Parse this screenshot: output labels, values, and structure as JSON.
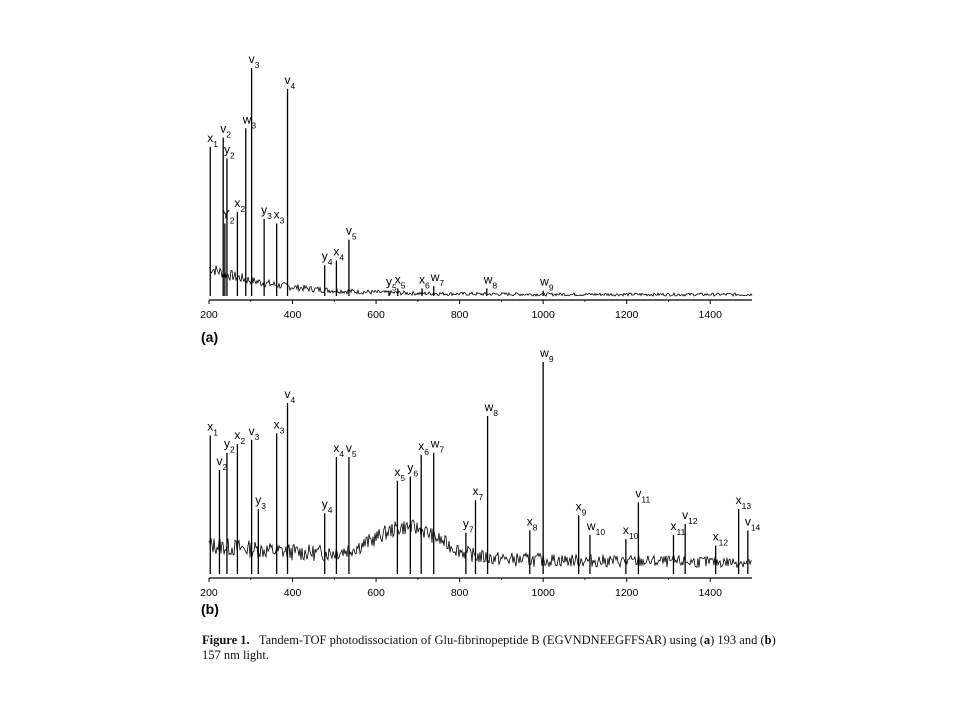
{
  "chart_data": [
    {
      "type": "line",
      "panel_label": "(a)",
      "x_tick_labels": [
        "200",
        "400",
        "600",
        "800",
        "1000",
        "1200",
        "1400"
      ],
      "xlim": [
        200,
        1500
      ],
      "ylim": [
        0,
        1
      ],
      "peaks": [
        {
          "x": 203,
          "y": 0.66,
          "label": "x",
          "sub": "1"
        },
        {
          "x": 234,
          "y": 0.7,
          "label": "v",
          "sub": "2"
        },
        {
          "x": 243,
          "y": 0.61,
          "label": "y",
          "sub": "2"
        },
        {
          "x": 238,
          "y": 0.33,
          "label": "Y",
          "sub": "2"
        },
        {
          "x": 268,
          "y": 0.38,
          "label": "x",
          "sub": "2"
        },
        {
          "x": 302,
          "y": 1.0,
          "label": "v",
          "sub": "3"
        },
        {
          "x": 288,
          "y": 0.74,
          "label": "w",
          "sub": "3"
        },
        {
          "x": 332,
          "y": 0.35,
          "label": "y",
          "sub": "3"
        },
        {
          "x": 362,
          "y": 0.33,
          "label": "x",
          "sub": "3"
        },
        {
          "x": 388,
          "y": 0.91,
          "label": "v",
          "sub": "4"
        },
        {
          "x": 477,
          "y": 0.15,
          "label": "y",
          "sub": "4"
        },
        {
          "x": 505,
          "y": 0.17,
          "label": "x",
          "sub": "4"
        },
        {
          "x": 535,
          "y": 0.26,
          "label": "v",
          "sub": "5"
        },
        {
          "x": 631,
          "y": 0.04,
          "label": "y",
          "sub": "5"
        },
        {
          "x": 652,
          "y": 0.05,
          "label": "x",
          "sub": "5"
        },
        {
          "x": 710,
          "y": 0.05,
          "label": "x",
          "sub": "6"
        },
        {
          "x": 738,
          "y": 0.06,
          "label": "w",
          "sub": "7"
        },
        {
          "x": 865,
          "y": 0.05,
          "label": "w",
          "sub": "8"
        },
        {
          "x": 1000,
          "y": 0.04,
          "label": "w",
          "sub": "9"
        }
      ]
    },
    {
      "type": "line",
      "panel_label": "(b)",
      "x_tick_labels": [
        "200",
        "400",
        "600",
        "800",
        "1000",
        "1200",
        "1400"
      ],
      "xlim": [
        200,
        1500
      ],
      "ylim": [
        0,
        1
      ],
      "peaks": [
        {
          "x": 203,
          "y": 0.66,
          "label": "x",
          "sub": "1"
        },
        {
          "x": 225,
          "y": 0.5,
          "label": "v",
          "sub": "2"
        },
        {
          "x": 243,
          "y": 0.58,
          "label": "y",
          "sub": "2"
        },
        {
          "x": 268,
          "y": 0.62,
          "label": "x",
          "sub": "2"
        },
        {
          "x": 302,
          "y": 0.64,
          "label": "v",
          "sub": "3"
        },
        {
          "x": 318,
          "y": 0.32,
          "label": "y",
          "sub": "3"
        },
        {
          "x": 362,
          "y": 0.67,
          "label": "x",
          "sub": "3"
        },
        {
          "x": 388,
          "y": 0.81,
          "label": "v",
          "sub": "4"
        },
        {
          "x": 477,
          "y": 0.3,
          "label": "y",
          "sub": "4"
        },
        {
          "x": 505,
          "y": 0.56,
          "label": "x",
          "sub": "4"
        },
        {
          "x": 535,
          "y": 0.56,
          "label": "v",
          "sub": "5"
        },
        {
          "x": 651,
          "y": 0.45,
          "label": "x",
          "sub": "5"
        },
        {
          "x": 682,
          "y": 0.47,
          "label": "y",
          "sub": "6"
        },
        {
          "x": 708,
          "y": 0.57,
          "label": "x",
          "sub": "6"
        },
        {
          "x": 738,
          "y": 0.58,
          "label": "w",
          "sub": "7"
        },
        {
          "x": 815,
          "y": 0.21,
          "label": "y",
          "sub": "7"
        },
        {
          "x": 838,
          "y": 0.36,
          "label": "x",
          "sub": "7"
        },
        {
          "x": 867,
          "y": 0.75,
          "label": "w",
          "sub": "8"
        },
        {
          "x": 968,
          "y": 0.22,
          "label": "x",
          "sub": "8"
        },
        {
          "x": 1000,
          "y": 1.0,
          "label": "w",
          "sub": "9"
        },
        {
          "x": 1085,
          "y": 0.29,
          "label": "x",
          "sub": "9"
        },
        {
          "x": 1112,
          "y": 0.2,
          "label": "w",
          "sub": "10"
        },
        {
          "x": 1198,
          "y": 0.18,
          "label": "x",
          "sub": "10"
        },
        {
          "x": 1228,
          "y": 0.35,
          "label": "v",
          "sub": "11"
        },
        {
          "x": 1312,
          "y": 0.2,
          "label": "x",
          "sub": "11"
        },
        {
          "x": 1340,
          "y": 0.25,
          "label": "v",
          "sub": "12"
        },
        {
          "x": 1413,
          "y": 0.15,
          "label": "x",
          "sub": "12"
        },
        {
          "x": 1468,
          "y": 0.32,
          "label": "x",
          "sub": "13"
        },
        {
          "x": 1490,
          "y": 0.22,
          "label": "v",
          "sub": "14"
        }
      ]
    }
  ],
  "caption": {
    "label": "Figure 1.",
    "text_1": "Tandem-TOF photodissociation of Glu-fibrinopeptide B (EGVNDNEEGFFSAR) using (",
    "a": "a",
    "text_2": ") 193 and (",
    "b": "b",
    "text_3": ") 157 nm light."
  }
}
